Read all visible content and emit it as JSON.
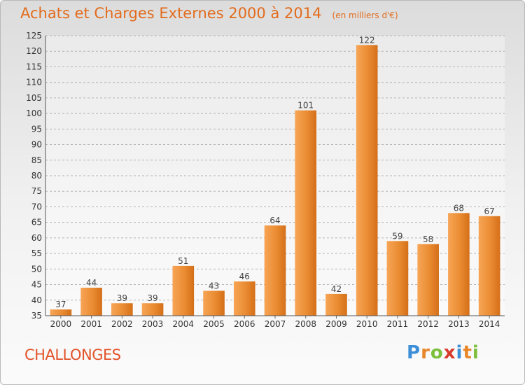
{
  "chart_data": {
    "type": "bar",
    "title": "Achats et Charges Externes 2000 à 2014",
    "unit_note": "(en milliers d'€)",
    "categories": [
      "2000",
      "2001",
      "2002",
      "2003",
      "2004",
      "2005",
      "2006",
      "2007",
      "2008",
      "2009",
      "2010",
      "2011",
      "2012",
      "2013",
      "2014"
    ],
    "values": [
      37,
      44,
      39,
      39,
      51,
      43,
      46,
      64,
      101,
      42,
      122,
      59,
      58,
      68,
      67
    ],
    "ylim": [
      35,
      125
    ],
    "yticks": [
      35,
      40,
      45,
      50,
      55,
      60,
      65,
      70,
      75,
      80,
      85,
      90,
      95,
      100,
      105,
      110,
      115,
      120,
      125
    ],
    "xlabel": "",
    "ylabel": "",
    "grid": "horizontal dashed",
    "bar_color": "#e98a2e",
    "show_value_labels": true
  },
  "location": "CHALLONGES",
  "logo": {
    "letters": [
      "P",
      "r",
      "o",
      "x",
      "i",
      "t",
      "i"
    ],
    "colors": [
      "#3c8fd6",
      "#e8872a",
      "#7cbf3b",
      "#d83a2a",
      "#3c8fd6",
      "#e8872a",
      "#7cbf3b"
    ]
  }
}
